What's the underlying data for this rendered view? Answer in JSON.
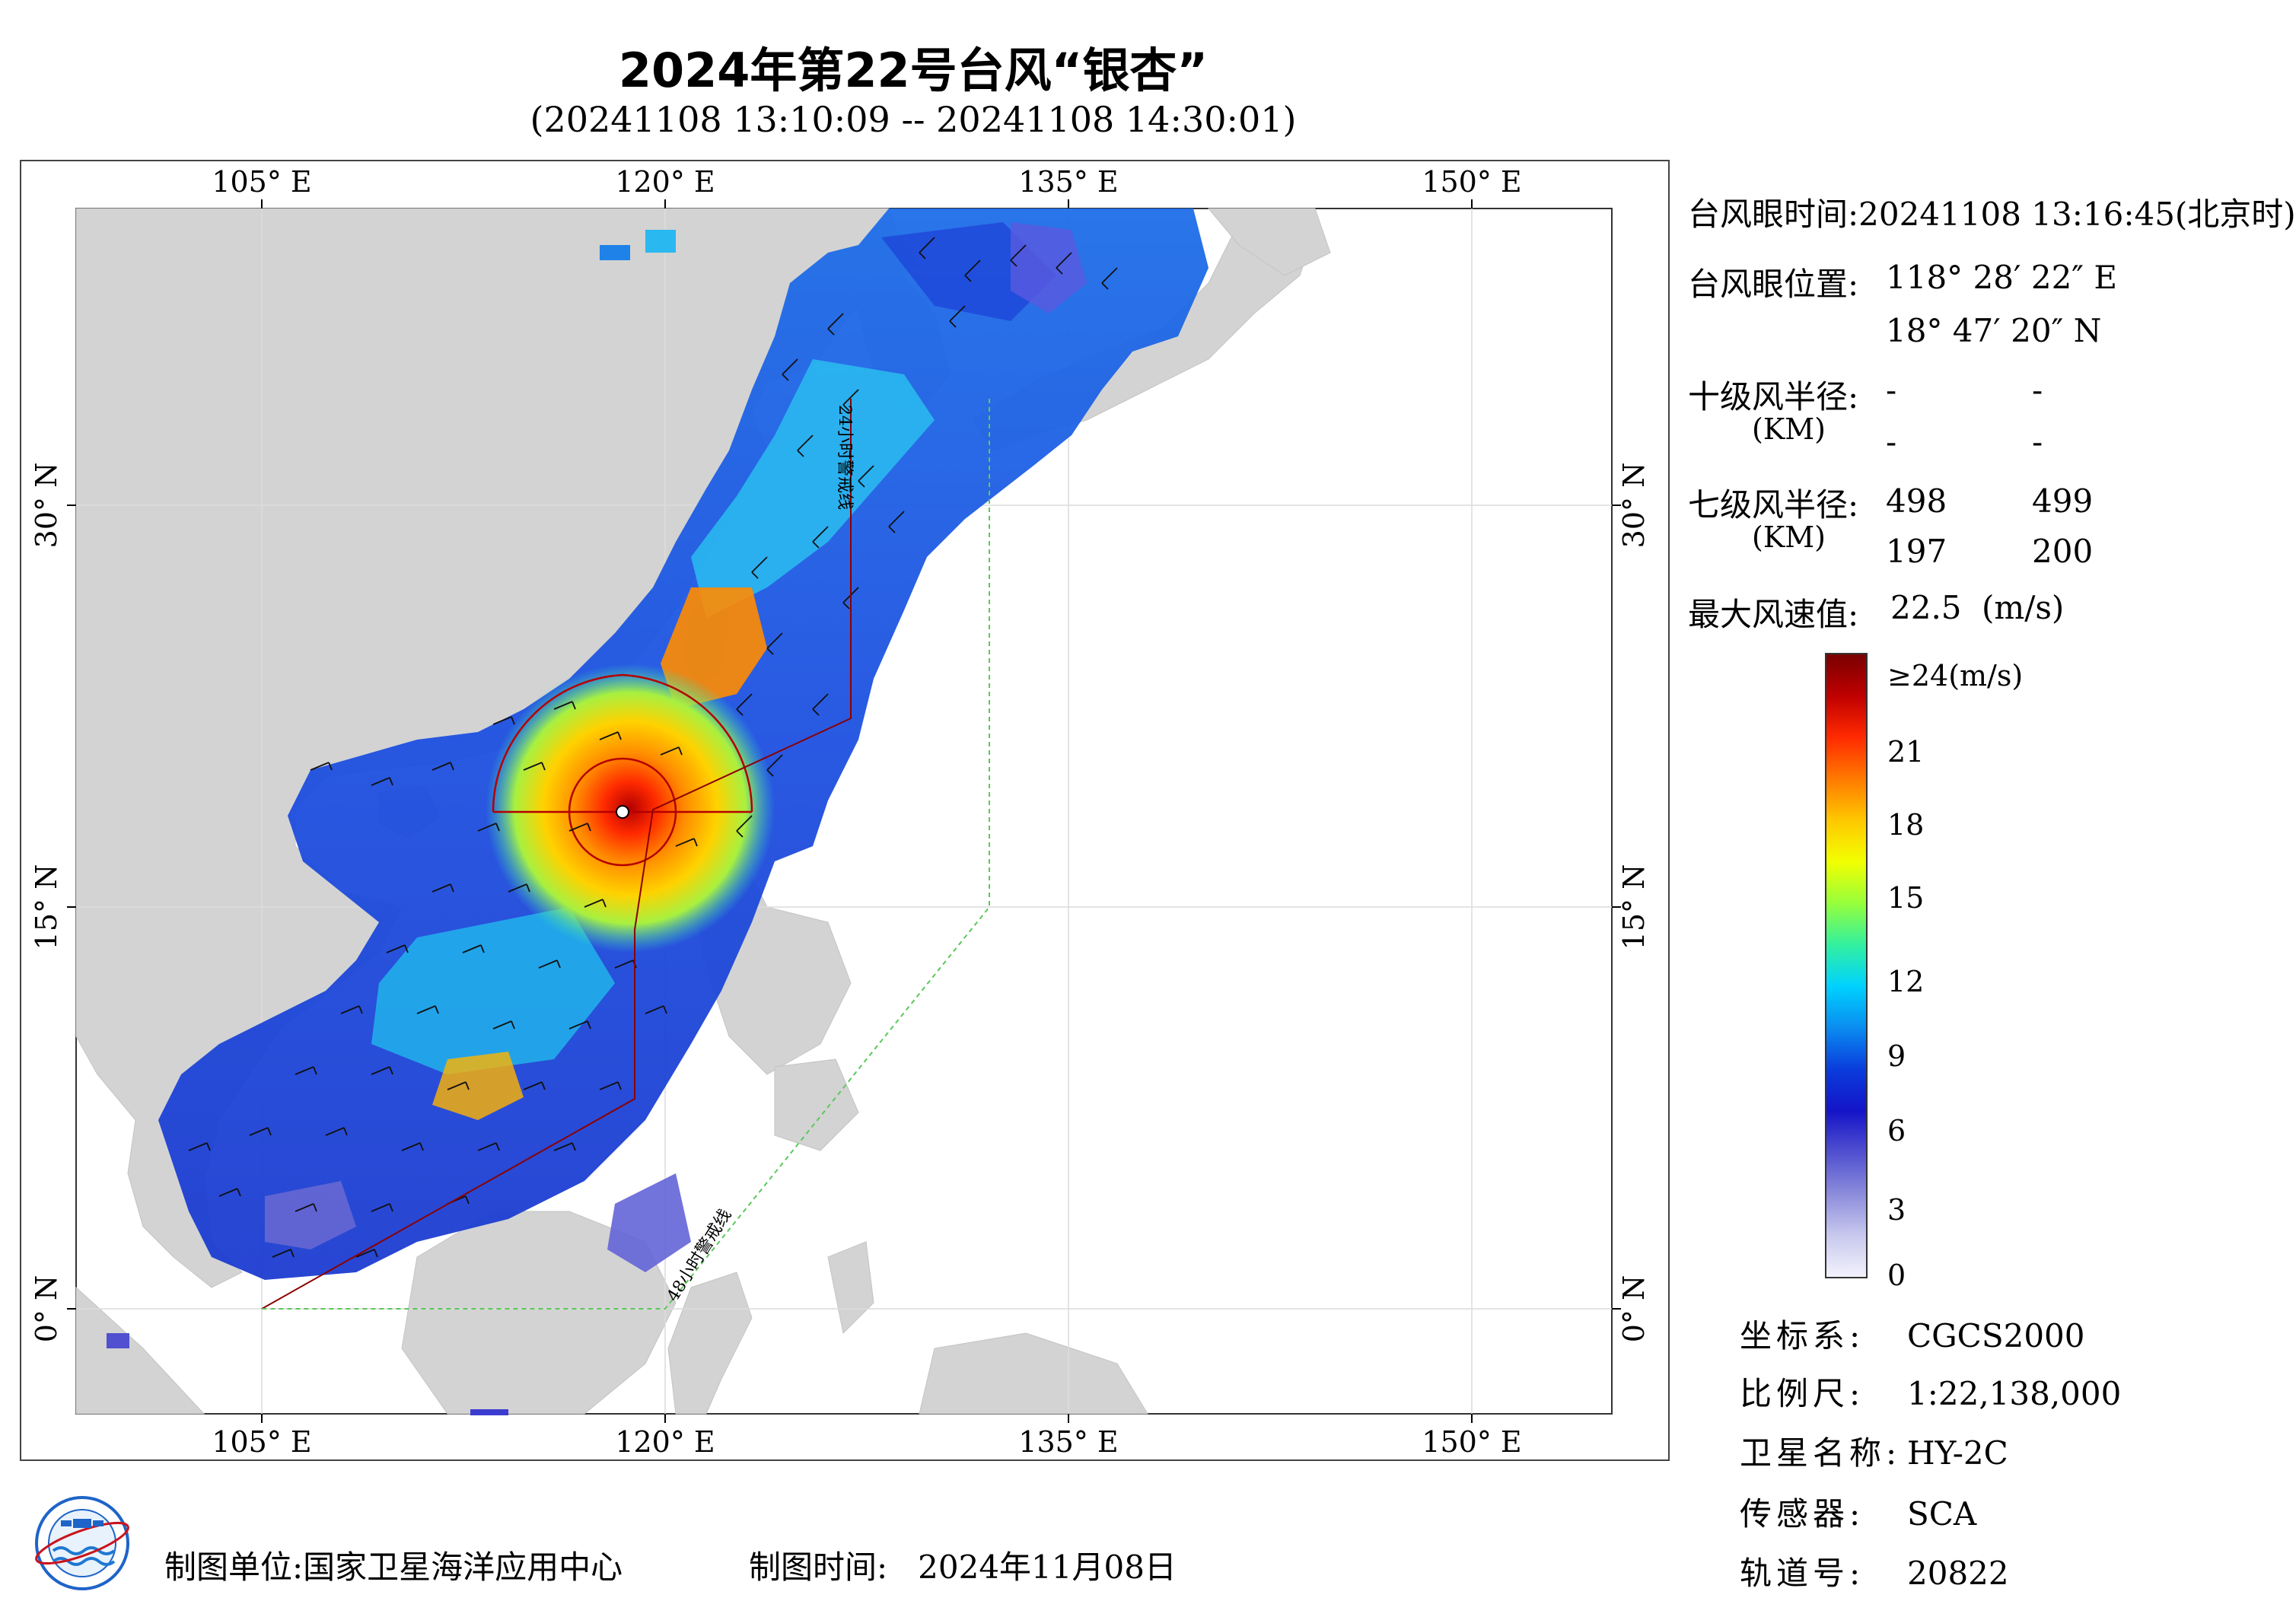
{
  "header": {
    "title": "2024年第22号台风“银杏”",
    "subtitle": "(20241108 13:10:09 -- 20241108 14:30:01)"
  },
  "map": {
    "lon_ticks": [
      "105° E",
      "120° E",
      "135° E",
      "150° E"
    ],
    "lat_ticks": [
      "30° N",
      "15° N",
      "0° N"
    ],
    "line_24h": "24小时警戒线",
    "line_48h": "48小时警戒线"
  },
  "info": {
    "eye_time_label": "台风眼时间:",
    "eye_time": "20241108 13:16:45(北京时)",
    "eye_pos_label": "台风眼位置:",
    "eye_lon": "118° 28′ 22″ E",
    "eye_lat": "18° 47′ 20″ N",
    "r10_label": "十级风半径:",
    "r10_unit": "(KM)",
    "r10_values": [
      "-",
      "-",
      "-",
      "-"
    ],
    "r7_label": "七级风半径:",
    "r7_unit": "(KM)",
    "r7_values": [
      "498",
      "499",
      "197",
      "200"
    ],
    "max_wind_label": "最大风速值:",
    "max_wind": "22.5",
    "max_wind_unit": "(m/s)"
  },
  "colorbar": {
    "labels": [
      "≥24(m/s)",
      "21",
      "18",
      "15",
      "12",
      "9",
      "6",
      "3",
      "0"
    ],
    "colors": [
      "#7a0000",
      "#c00000",
      "#ff2a00",
      "#ff7a00",
      "#ffc800",
      "#f2ff00",
      "#96ff3c",
      "#32f0a0",
      "#00d2ff",
      "#0a8cf0",
      "#0a3cdc",
      "#1414c8",
      "#5050d0",
      "#8c8cdc",
      "#c8c8ee",
      "#f2f2fc"
    ]
  },
  "meta": {
    "crs_label": "坐标系:",
    "crs": "CGCS2000",
    "scale_label": "比例尺:",
    "scale": "1:22,138,000",
    "satellite_label": "卫星名称:",
    "satellite": "HY-2C",
    "sensor_label": "传感器:",
    "sensor": "SCA",
    "orbit_label": "轨道号:",
    "orbit": "20822"
  },
  "footer": {
    "producer_label": "制图单位:",
    "producer": "国家卫星海洋应用中心",
    "date_label": "制图时间:",
    "date": "2024年11月08日"
  }
}
